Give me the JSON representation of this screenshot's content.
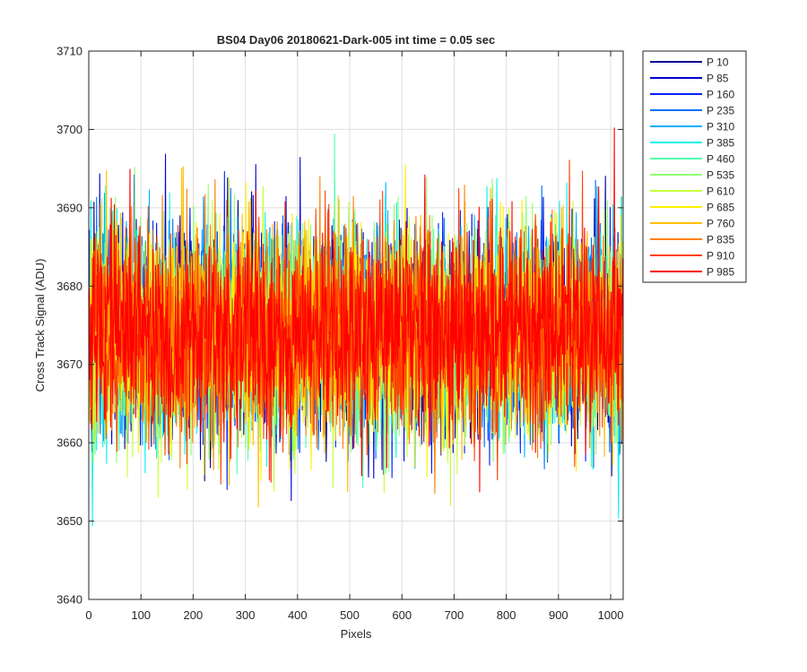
{
  "chart_data": {
    "type": "line",
    "title": "BS04 Day06 20180621-Dark-005 int time = 0.05 sec",
    "xlabel": "Pixels",
    "ylabel": "Cross Track Signal (ADU)",
    "xlim": [
      0,
      1024
    ],
    "ylim": [
      3640,
      3710
    ],
    "xticks": [
      0,
      100,
      200,
      300,
      400,
      500,
      600,
      700,
      800,
      900,
      1000
    ],
    "yticks": [
      3640,
      3650,
      3660,
      3670,
      3680,
      3690,
      3700,
      3710
    ],
    "grid": true,
    "legend_position": "outside-top-right",
    "n_points": 1024,
    "signal_mean": 3674,
    "series": [
      {
        "name": "P 10",
        "color": "#00008f",
        "spread": 6.5
      },
      {
        "name": "P 85",
        "color": "#0000d6",
        "spread": 6.5
      },
      {
        "name": "P 160",
        "color": "#0020ff",
        "spread": 6.5
      },
      {
        "name": "P 235",
        "color": "#0070ff",
        "spread": 6.5
      },
      {
        "name": "P 310",
        "color": "#00b0ff",
        "spread": 6.5
      },
      {
        "name": "P 385",
        "color": "#10f0ef",
        "spread": 6.5
      },
      {
        "name": "P 460",
        "color": "#50ffaf",
        "spread": 6.5
      },
      {
        "name": "P 535",
        "color": "#90ff70",
        "spread": 6.5
      },
      {
        "name": "P 610",
        "color": "#c8ff38",
        "spread": 6.5
      },
      {
        "name": "P 685",
        "color": "#ffef00",
        "spread": 6.5
      },
      {
        "name": "P 760",
        "color": "#ffbf00",
        "spread": 6.5
      },
      {
        "name": "P 835",
        "color": "#ff7f00",
        "spread": 6.5
      },
      {
        "name": "P 910",
        "color": "#ff4000",
        "spread": 6.5
      },
      {
        "name": "P 985",
        "color": "#ff0000",
        "spread": 6.5
      }
    ]
  }
}
